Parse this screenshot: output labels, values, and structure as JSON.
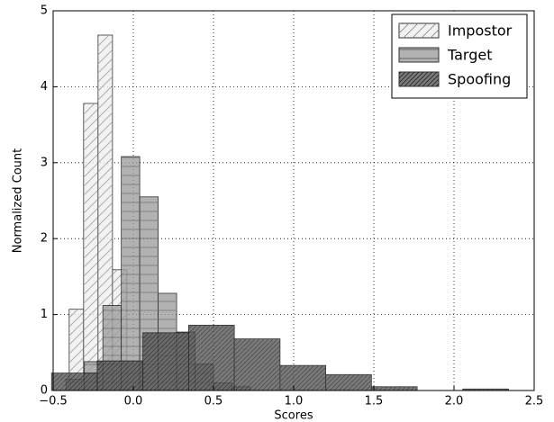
{
  "chart_data": {
    "type": "histogram",
    "xlabel": "Scores",
    "ylabel": "Normalized Count",
    "xlim": [
      -0.5,
      2.5
    ],
    "ylim": [
      0,
      5
    ],
    "xticks": [
      {
        "value": -0.5,
        "label": "−0.5"
      },
      {
        "value": 0,
        "label": "0.0"
      },
      0.5,
      {
        "value": 1,
        "label": "1.0"
      },
      1.5,
      {
        "value": 2,
        "label": "2.0"
      },
      2.5
    ],
    "yticks": [
      0,
      1,
      2,
      3,
      4,
      5
    ],
    "grid": true,
    "legend": "upper right",
    "series": [
      {
        "name": "Impostor",
        "color": "#f0f0f0",
        "hatch": "/",
        "bins": [
          -0.4,
          -0.31,
          -0.22,
          -0.13,
          -0.04
        ],
        "values": [
          1.07,
          3.78,
          4.68,
          1.59
        ]
      },
      {
        "name": "Target",
        "color": "#a0a0a0",
        "hatch": "-",
        "bins": [
          -0.42,
          -0.305,
          -0.19,
          -0.075,
          0.04,
          0.155,
          0.27,
          0.385,
          0.5,
          0.615,
          0.73
        ],
        "values": [
          0.15,
          0.38,
          1.12,
          3.08,
          2.55,
          1.28,
          0.77,
          0.35,
          0.1,
          0.05
        ]
      },
      {
        "name": "Spoofing",
        "color": "#5a5a5a",
        "hatch": "//",
        "bins": [
          -0.51,
          -0.225,
          0.06,
          0.345,
          0.63,
          0.915,
          1.2,
          1.485,
          1.77,
          2.055,
          2.34
        ],
        "values": [
          0.23,
          0.39,
          0.76,
          0.86,
          0.68,
          0.33,
          0.21,
          0.05,
          0,
          0.02
        ]
      }
    ]
  }
}
